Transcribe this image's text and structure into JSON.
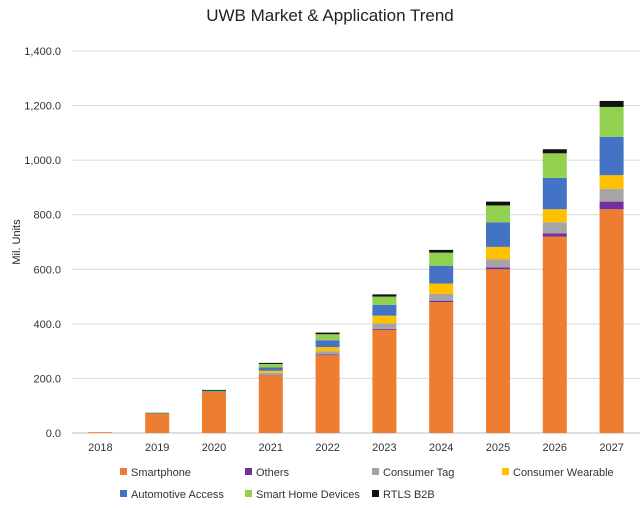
{
  "chart_data": {
    "type": "bar",
    "stacked": true,
    "title": "UWB Market & Application Trend",
    "xlabel": "",
    "ylabel": "Mil. Units",
    "ylim": [
      0,
      1400
    ],
    "yticks": [
      "0.0",
      "200.0",
      "400.0",
      "600.0",
      "800.0",
      "1,000.0",
      "1,200.0",
      "1,400.0"
    ],
    "grid": true,
    "legend_position": "bottom",
    "categories": [
      "2018",
      "2019",
      "2020",
      "2021",
      "2022",
      "2023",
      "2024",
      "2025",
      "2026",
      "2027"
    ],
    "series": [
      {
        "name": "Smartphone",
        "color": "#ED7D31",
        "values": [
          3,
          70,
          150,
          210,
          285,
          378,
          480,
          600,
          720,
          820
        ]
      },
      {
        "name": "Others",
        "color": "#7030A0",
        "values": [
          0,
          0,
          0,
          2,
          3,
          4,
          5,
          7,
          12,
          28
        ]
      },
      {
        "name": "Consumer Tag",
        "color": "#A5A5A5",
        "values": [
          0,
          0,
          0,
          8,
          12,
          20,
          25,
          30,
          40,
          47
        ]
      },
      {
        "name": "Consumer Wearable",
        "color": "#FFC000",
        "values": [
          0,
          0,
          0,
          8,
          15,
          28,
          38,
          45,
          48,
          50
        ]
      },
      {
        "name": "Automotive Access",
        "color": "#4472C4",
        "values": [
          0,
          0,
          2,
          12,
          25,
          40,
          65,
          90,
          115,
          140
        ]
      },
      {
        "name": "Smart Home Devices",
        "color": "#92D050",
        "values": [
          0,
          2,
          3,
          13,
          22,
          30,
          48,
          62,
          90,
          110
        ]
      },
      {
        "name": "RTLS B2B",
        "color": "#111111",
        "values": [
          0,
          2,
          3,
          4,
          6,
          8,
          10,
          14,
          15,
          22
        ]
      }
    ]
  }
}
